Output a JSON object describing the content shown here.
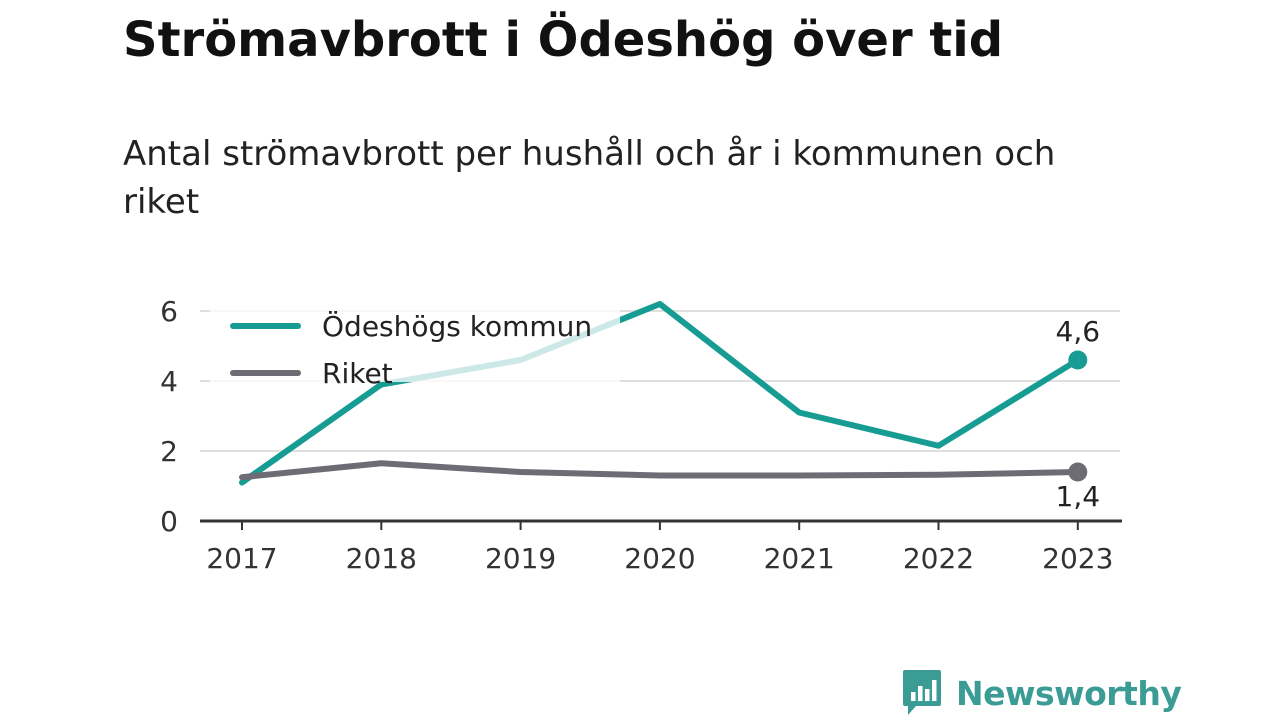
{
  "header": {
    "title": "Strömavbrott i Ödeshög över tid",
    "subtitle": "Antal strömavbrott per hushåll och år i kommunen och riket"
  },
  "brand": {
    "name": "Newsworthy",
    "icon": "newsworthy-chart-bubble-icon"
  },
  "colors": {
    "kommun": "#179c94",
    "riket": "#6d6c75",
    "grid": "#e0e0e0",
    "axis": "#333333"
  },
  "chart_data": {
    "type": "line",
    "title": "Strömavbrott i Ödeshög över tid",
    "subtitle": "Antal strömavbrott per hushåll och år i kommunen och riket",
    "x": [
      "2017",
      "2018",
      "2019",
      "2020",
      "2021",
      "2022",
      "2023"
    ],
    "series": [
      {
        "name": "Ödeshögs kommun",
        "values": [
          1.1,
          3.9,
          4.6,
          6.2,
          3.1,
          2.15,
          4.6
        ]
      },
      {
        "name": "Riket",
        "values": [
          1.25,
          1.65,
          1.4,
          1.3,
          1.3,
          1.32,
          1.4
        ]
      }
    ],
    "ylim": [
      0,
      6.2
    ],
    "yticks": [
      "0",
      "2",
      "4",
      "6"
    ],
    "end_labels": [
      "4,6",
      "1,4"
    ],
    "grid": true,
    "legend": "top-left"
  }
}
